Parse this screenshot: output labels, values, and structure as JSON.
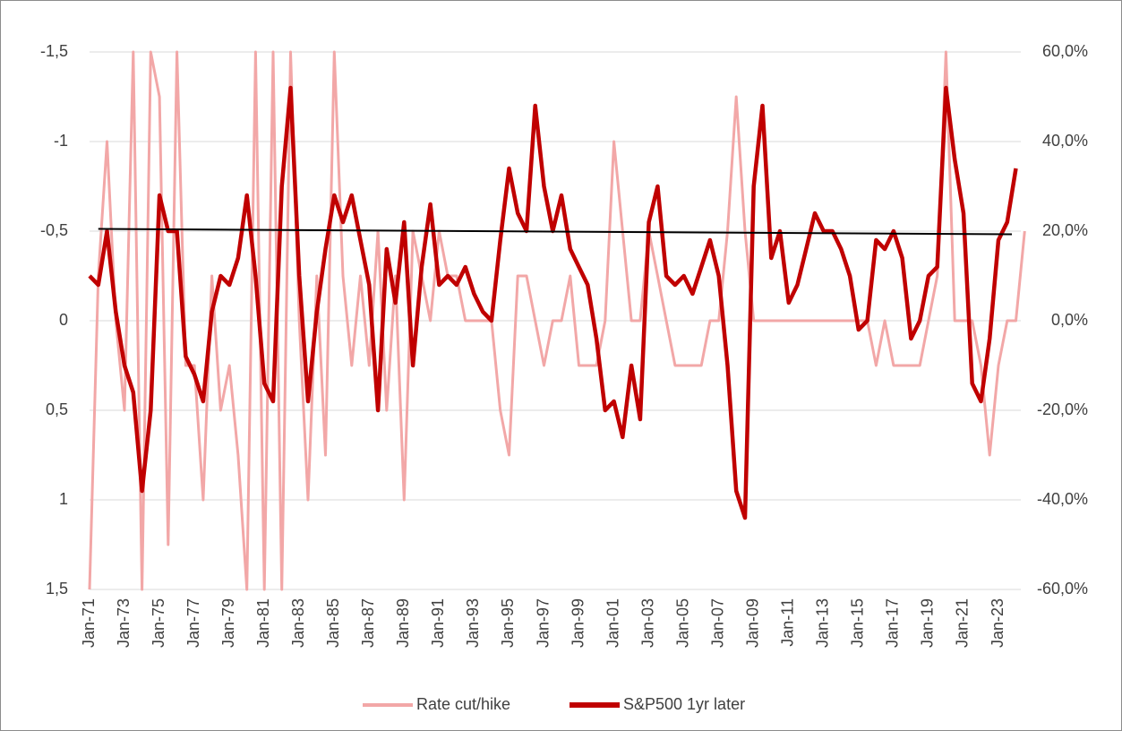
{
  "chart_data": {
    "type": "line",
    "categories": [
      "Jan-71",
      null,
      null,
      null,
      "Jan-73",
      null,
      null,
      null,
      "Jan-75",
      null,
      null,
      null,
      "Jan-77",
      null,
      null,
      null,
      "Jan-79",
      null,
      null,
      null,
      "Jan-81",
      null,
      null,
      null,
      "Jan-83",
      null,
      null,
      null,
      "Jan-85",
      null,
      null,
      null,
      "Jan-87",
      null,
      null,
      null,
      "Jan-89",
      null,
      null,
      null,
      "Jan-91",
      null,
      null,
      null,
      "Jan-93",
      null,
      null,
      null,
      "Jan-95",
      null,
      null,
      null,
      "Jan-97",
      null,
      null,
      null,
      "Jan-99",
      null,
      null,
      null,
      "Jan-01",
      null,
      null,
      null,
      "Jan-03",
      null,
      null,
      null,
      "Jan-05",
      null,
      null,
      null,
      "Jan-07",
      null,
      null,
      null,
      "Jan-09",
      null,
      null,
      null,
      "Jan-11",
      null,
      null,
      null,
      "Jan-13",
      null,
      null,
      null,
      "Jan-15",
      null,
      null,
      null,
      "Jan-17",
      null,
      null,
      null,
      "Jan-19",
      null,
      null,
      null,
      "Jan-21",
      null,
      null,
      null,
      "Jan-23",
      null,
      null,
      null
    ],
    "series": [
      {
        "name": "Rate cut/hike",
        "color": "#f2a7a7",
        "values": [
          1.5,
          -0.25,
          -1,
          0,
          0.5,
          -1.5,
          1.5,
          -1.5,
          -1.25,
          1.25,
          -1.5,
          0.25,
          0.25,
          1,
          -0.25,
          0.5,
          0.25,
          0.75,
          1.5,
          -1.5,
          1.5,
          -1.5,
          1.5,
          -1.5,
          0,
          1,
          -0.25,
          0.75,
          -1.5,
          -0.25,
          0.25,
          -0.25,
          0.25,
          -0.5,
          0.5,
          -0.25,
          1,
          -0.5,
          -0.25,
          0,
          -0.5,
          -0.25,
          -0.25,
          0,
          0,
          0,
          0,
          0.5,
          0.75,
          -0.25,
          -0.25,
          0,
          0.25,
          0,
          0,
          -0.25,
          0.25,
          0.25,
          0.25,
          0,
          -1,
          -0.5,
          0,
          0,
          -0.5,
          -0.25,
          0,
          0.25,
          0.25,
          0.25,
          0.25,
          0,
          0,
          -0.5,
          -1.25,
          -0.5,
          0,
          0,
          0,
          0,
          0,
          0,
          0,
          0,
          0,
          0,
          0,
          0,
          0,
          0,
          0.25,
          0,
          0.25,
          0.25,
          0.25,
          0.25,
          0,
          -0.25,
          -1.5,
          0,
          0,
          0,
          0.25,
          0.75,
          0.25,
          0,
          0,
          -0.5
        ]
      },
      {
        "name": "S&P500 1yr later",
        "color": "#c00000",
        "axis": "y2",
        "values": [
          10,
          8,
          20,
          2,
          -10,
          -16,
          -38,
          -20,
          28,
          20,
          20,
          -8,
          -12,
          -18,
          2,
          10,
          8,
          14,
          28,
          10,
          -14,
          -18,
          30,
          52,
          10,
          -18,
          2,
          16,
          28,
          22,
          28,
          18,
          8,
          -20,
          16,
          4,
          22,
          -10,
          12,
          26,
          8,
          10,
          8,
          12,
          6,
          2,
          0,
          18,
          34,
          24,
          20,
          48,
          30,
          20,
          28,
          16,
          12,
          8,
          -4,
          -20,
          -18,
          -26,
          -10,
          -22,
          22,
          30,
          10,
          8,
          10,
          6,
          12,
          18,
          10,
          -10,
          -38,
          -44,
          30,
          48,
          14,
          20,
          4,
          8,
          16,
          24,
          20,
          20,
          16,
          10,
          -2,
          0,
          18,
          16,
          20,
          14,
          -4,
          0,
          10,
          12,
          52,
          36,
          24,
          -14,
          -18,
          -4,
          18,
          22,
          34,
          null
        ]
      }
    ],
    "trendline": {
      "color": "#000000",
      "axis": "y2",
      "values": [
        20.5,
        19.3
      ]
    },
    "ylim": [
      1.5,
      -1.5
    ],
    "yticks": [
      {
        "value": -1.5,
        "label": "-1,5"
      },
      -1,
      {
        "value": -0.5,
        "label": "-0,5"
      },
      0,
      {
        "value": 0.5,
        "label": "0,5"
      },
      1,
      {
        "value": 1.5,
        "label": "1,5"
      }
    ],
    "y2lim": [
      -60,
      60
    ],
    "y2ticks": [
      {
        "value": 60,
        "label": "60,0%"
      },
      {
        "value": 40,
        "label": "40,0%"
      },
      {
        "value": 20,
        "label": "20,0%"
      },
      {
        "value": 0,
        "label": "0,0%"
      },
      {
        "value": -20,
        "label": "-20,0%"
      },
      {
        "value": -40,
        "label": "-40,0%"
      },
      {
        "value": -60,
        "label": "-60,0%"
      }
    ],
    "grid": true,
    "legend": "bottom"
  }
}
